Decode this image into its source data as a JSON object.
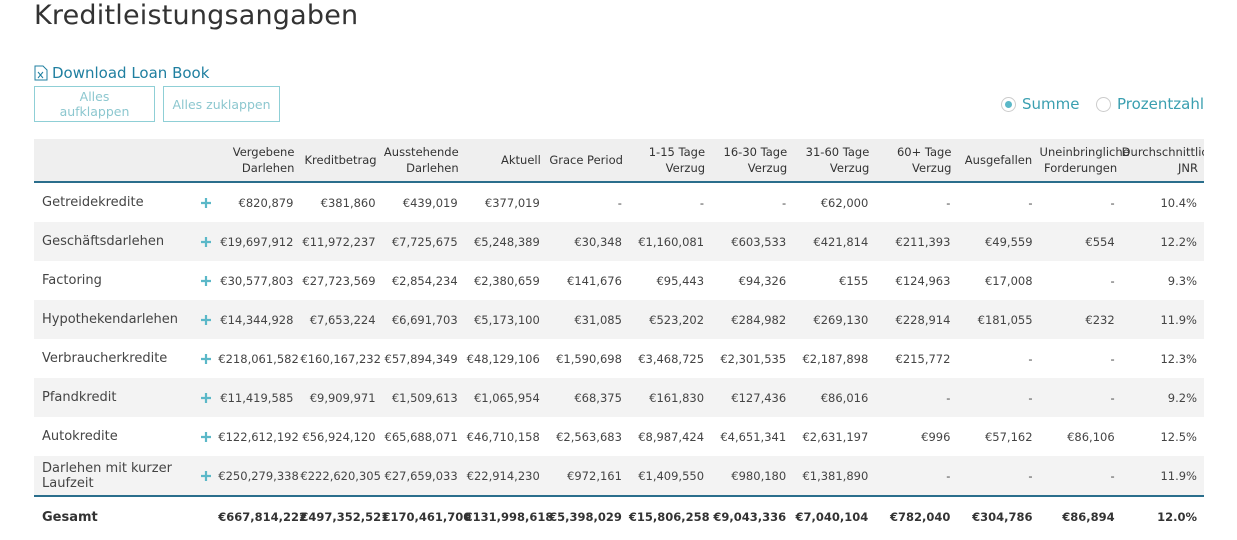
{
  "header": {
    "title": "Kreditleistungsangaben",
    "download_link": "Download Loan Book",
    "buttons": [
      "Alles aufklappen",
      "Alles zuklappen"
    ],
    "radio_options": [
      "Summe",
      "Prozentzahl"
    ]
  },
  "table": {
    "columns": [
      "Vergebene Darlehen",
      "Kreditbetrag",
      "Ausstehende Darlehen",
      "Aktuell",
      "Grace Period",
      "1-15 Tage Verzug",
      "16-30 Tage Verzug",
      "31-60 Tage Verzug",
      "60+ Tage Verzug",
      "Ausgefallen",
      "Uneinbringliche Forderungen",
      "Durchschnittliche JNR"
    ],
    "rows": [
      {
        "name": "Getreidekredite",
        "cells": [
          "€820,879",
          "€381,860",
          "€439,019",
          "€377,019",
          "-",
          "-",
          "-",
          "€62,000",
          "-",
          "-",
          "-",
          "10.4%"
        ]
      },
      {
        "name": "Geschäftsdarlehen",
        "cells": [
          "€19,697,912",
          "€11,972,237",
          "€7,725,675",
          "€5,248,389",
          "€30,348",
          "€1,160,081",
          "€603,533",
          "€421,814",
          "€211,393",
          "€49,559",
          "€554",
          "12.2%"
        ]
      },
      {
        "name": "Factoring",
        "cells": [
          "€30,577,803",
          "€27,723,569",
          "€2,854,234",
          "€2,380,659",
          "€141,676",
          "€95,443",
          "€94,326",
          "€155",
          "€124,963",
          "€17,008",
          "-",
          "9.3%"
        ]
      },
      {
        "name": "Hypothekendarlehen",
        "cells": [
          "€14,344,928",
          "€7,653,224",
          "€6,691,703",
          "€5,173,100",
          "€31,085",
          "€523,202",
          "€284,982",
          "€269,130",
          "€228,914",
          "€181,055",
          "€232",
          "11.9%"
        ]
      },
      {
        "name": "Verbraucherkredite",
        "cells": [
          "€218,061,582",
          "€160,167,232",
          "€57,894,349",
          "€48,129,106",
          "€1,590,698",
          "€3,468,725",
          "€2,301,535",
          "€2,187,898",
          "€215,772",
          "-",
          "-",
          "12.3%"
        ]
      },
      {
        "name": "Pfandkredit",
        "cells": [
          "€11,419,585",
          "€9,909,971",
          "€1,509,613",
          "€1,065,954",
          "€68,375",
          "€161,830",
          "€127,436",
          "€86,016",
          "-",
          "-",
          "-",
          "9.2%"
        ]
      },
      {
        "name": "Autokredite",
        "cells": [
          "€122,612,192",
          "€56,924,120",
          "€65,688,071",
          "€46,710,158",
          "€2,563,683",
          "€8,987,424",
          "€4,651,341",
          "€2,631,197",
          "€996",
          "€57,162",
          "€86,106",
          "12.5%"
        ]
      },
      {
        "name": "Darlehen mit kurzer Laufzeit",
        "cells": [
          "€250,279,338",
          "€222,620,305",
          "€27,659,033",
          "€22,914,230",
          "€972,161",
          "€1,409,550",
          "€980,180",
          "€1,381,890",
          "-",
          "-",
          "-",
          "11.9%"
        ]
      }
    ],
    "total": {
      "name": "Gesamt",
      "cells": [
        "€667,814,222",
        "€497,352,521",
        "€170,461,700",
        "€131,998,618",
        "€5,398,029",
        "€15,806,258",
        "€9,043,336",
        "€7,040,104",
        "€782,040",
        "€304,786",
        "€86,894",
        "12.0%"
      ]
    }
  }
}
